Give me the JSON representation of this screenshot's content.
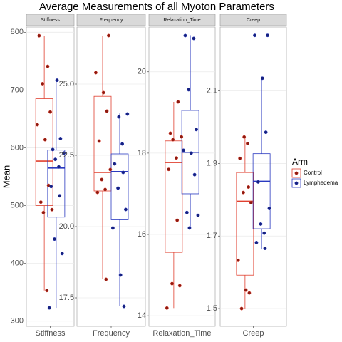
{
  "chart_data": {
    "type": "facet-box",
    "title": "Average Measurements of all Myoton Parameters",
    "y_label": "Mean",
    "legend_title": "Arm",
    "groups": [
      {
        "name": "Control",
        "color": "#e0402f",
        "point_color": "#8b1a10"
      },
      {
        "name": "Lymphedema",
        "color": "#2a3ac0",
        "point_color": "#16217e"
      }
    ],
    "facets": [
      {
        "strip": "Stiffness",
        "ylim": [
          291,
          809
        ],
        "yticks": [
          300,
          400,
          500,
          600,
          700,
          800
        ],
        "boxes": [
          {
            "min": 353,
            "q1": 500,
            "median": 577,
            "q3": 685,
            "max": 794
          },
          {
            "min": 323,
            "q1": 480,
            "median": 565,
            "q3": 596,
            "max": 716
          }
        ],
        "points": [
          [
            794,
            741,
            711,
            662,
            640,
            614,
            535,
            506,
            493,
            488,
            353
          ],
          [
            717,
            616,
            597,
            591,
            580,
            567,
            533,
            517,
            442,
            417,
            323
          ]
        ]
      },
      {
        "strip": "Frequency",
        "ylim": [
          16.5,
          27.0
        ],
        "yticks": [
          {
            "value": 17.5,
            "label": "17.5"
          },
          {
            "value": 20,
            "label": "20.0"
          },
          {
            "value": 22.5,
            "label": "22.5"
          },
          {
            "value": 25,
            "label": "25.0"
          }
        ],
        "boxes": [
          {
            "min": 18.15,
            "q1": 21.25,
            "median": 21.9,
            "q3": 24.57,
            "max": 26.7
          },
          {
            "min": 17.2,
            "q1": 20.24,
            "median": 21.93,
            "q3": 22.55,
            "max": 23.97
          }
        ],
        "points": [
          [
            26.7,
            25.4,
            24.7,
            24.05,
            23.0,
            22.0,
            21.65,
            21.3,
            21.2,
            18.15
          ],
          [
            23.95,
            23.85,
            22.9,
            22.2,
            21.9,
            21.35,
            20.6,
            19.95,
            18.3,
            17.2
          ]
        ]
      },
      {
        "strip": "Relaxation_Time",
        "ylim": [
          13.74,
          21.1
        ],
        "yticks": [
          14,
          16,
          18,
          20
        ],
        "boxes": [
          {
            "min": 14.19,
            "q1": 15.56,
            "median": 17.77,
            "q3": 18.3,
            "max": 19.26
          },
          {
            "min": 16.16,
            "q1": 17.0,
            "median": 18.02,
            "q3": 19.05,
            "max": 20.9
          }
        ],
        "points": [
          [
            19.26,
            18.49,
            18.4,
            18.33,
            17.88,
            17.6,
            16.35,
            14.79,
            14.74,
            14.19
          ],
          [
            20.89,
            20.82,
            19.56,
            18.58,
            18.07,
            18.0,
            17.47,
            16.54,
            16.47,
            16.16
          ]
        ]
      },
      {
        "strip": "Creep",
        "ylim": [
          1.451,
          2.276
        ],
        "yticks": [
          1.5,
          1.7,
          1.9,
          2.1
        ],
        "boxes": [
          {
            "min": 1.5,
            "q1": 1.592,
            "median": 1.796,
            "q3": 1.875,
            "max": 1.973
          },
          {
            "min": 1.663,
            "q1": 1.72,
            "median": 1.851,
            "q3": 1.927,
            "max": 2.135
          }
        ],
        "points": [
          [
            1.973,
            1.955,
            1.914,
            1.835,
            1.82,
            1.792,
            1.633,
            1.551,
            1.543,
            1.5
          ],
          [
            2.253,
            2.253,
            2.135,
            1.986,
            1.849,
            1.776,
            1.733,
            1.708,
            1.682,
            1.666
          ]
        ]
      }
    ]
  }
}
